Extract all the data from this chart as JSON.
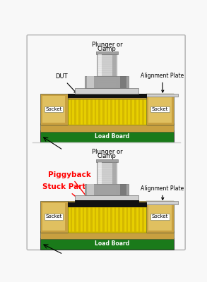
{
  "bg_color": "#f8f8f8",
  "border_color": "#bbbbbb",
  "gold_color": "#c8a800",
  "yellow_pin": "#e8d000",
  "yellow_bg": "#d4b800",
  "green_color": "#1a7a1a",
  "black_color": "#111111",
  "gray_light": "#d0d0d0",
  "gray_mid": "#a0a0a0",
  "gray_dark": "#707070",
  "white": "#ffffff",
  "red": "#cc0000",
  "tan_color": "#c8a040",
  "tan_dark": "#a08030",
  "socket_bg": "#e0c060",
  "diagram1_labels": {
    "plunger_line1": "Plunger or",
    "plunger_line2": "Clamp",
    "dut": "DUT",
    "alignment": "Alignment Plate",
    "socket": "Socket",
    "load_board": "Load Board"
  },
  "diagram2_labels": {
    "plunger_line1": "Plunger or",
    "plunger_line2": "Clamp",
    "piggyback": "Piggyback",
    "stuck": "Stuck Part",
    "alignment": "Alignment Plate",
    "socket": "Socket",
    "load_board": "Load Board"
  }
}
